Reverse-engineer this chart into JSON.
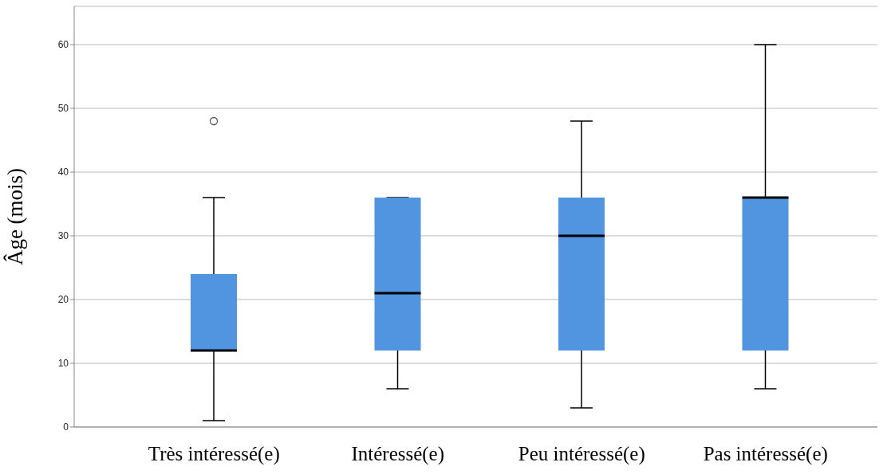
{
  "chart_data": {
    "type": "box",
    "ylabel": "Âge (mois)",
    "categories": [
      "Très intéressé(e)",
      "Intéressé(e)",
      "Peu intéressé(e)",
      "Pas intéressé(e)"
    ],
    "color": "#5194e0",
    "ylim": [
      0,
      66
    ],
    "yticks": [
      0,
      10,
      20,
      30,
      40,
      50,
      60
    ],
    "grid": "y",
    "boxes": [
      {
        "low": 1,
        "q1": 12,
        "median": 12,
        "q3": 24,
        "high": 36,
        "outliers": [
          48
        ]
      },
      {
        "low": 6,
        "q1": 12,
        "median": 21,
        "q3": 36,
        "high": 36
      },
      {
        "low": 3,
        "q1": 12,
        "median": 30,
        "q3": 36,
        "high": 48
      },
      {
        "low": 6,
        "q1": 12,
        "median": 36,
        "q3": 36,
        "high": 60
      }
    ]
  }
}
